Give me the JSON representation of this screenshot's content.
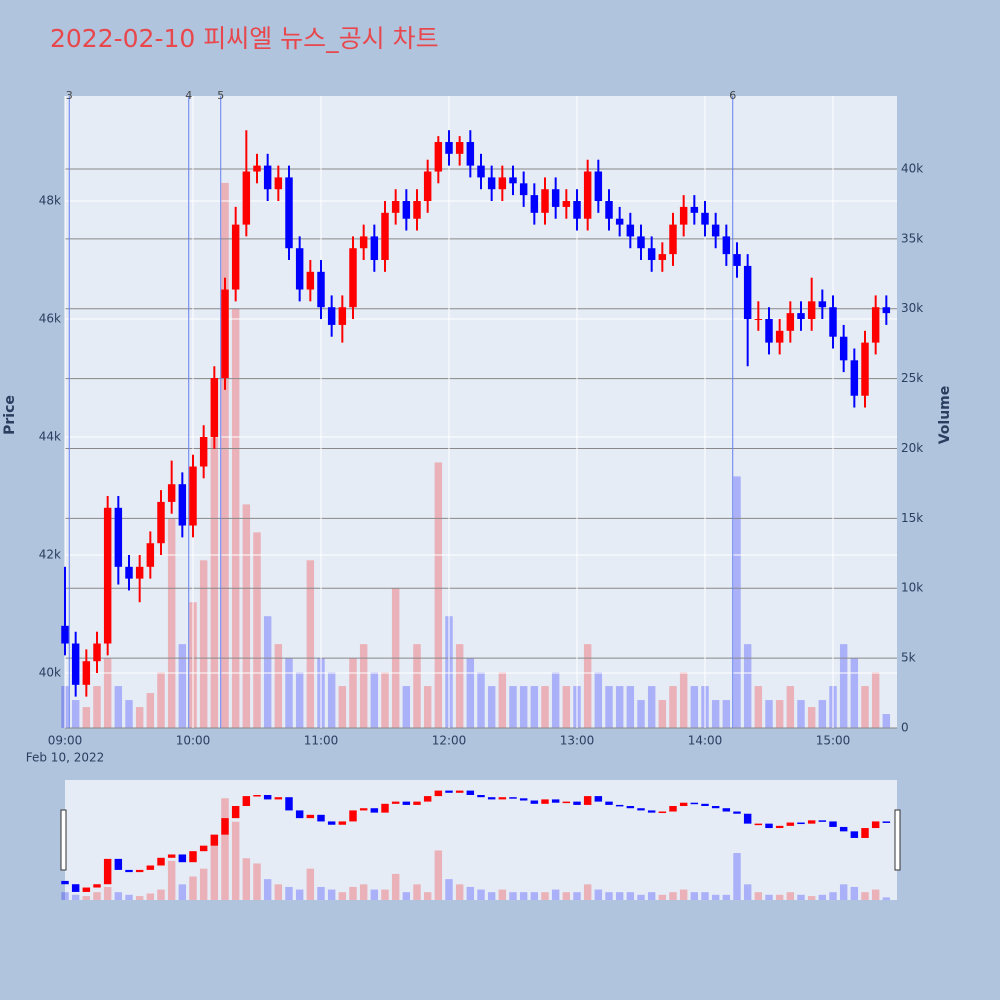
{
  "chart_data": {
    "type": "candlestick",
    "title": "2022-02-10 피씨엘 뉴스_공시 차트",
    "y_title": "Price",
    "y2_title": "Volume",
    "x_date_label": "Feb 10, 2022",
    "x": [
      "09:00",
      "09:05",
      "09:10",
      "09:15",
      "09:20",
      "09:25",
      "09:30",
      "09:35",
      "09:40",
      "09:45",
      "09:50",
      "09:55",
      "10:00",
      "10:05",
      "10:10",
      "10:15",
      "10:20",
      "10:25",
      "10:30",
      "10:35",
      "10:40",
      "10:45",
      "10:50",
      "10:55",
      "11:00",
      "11:05",
      "11:10",
      "11:15",
      "11:20",
      "11:25",
      "11:30",
      "11:35",
      "11:40",
      "11:45",
      "11:50",
      "11:55",
      "12:00",
      "12:05",
      "12:10",
      "12:15",
      "12:20",
      "12:25",
      "12:30",
      "12:35",
      "12:40",
      "12:45",
      "12:50",
      "12:55",
      "13:00",
      "13:05",
      "13:10",
      "13:15",
      "13:20",
      "13:25",
      "13:30",
      "13:35",
      "13:40",
      "13:45",
      "13:50",
      "13:55",
      "14:00",
      "14:05",
      "14:10",
      "14:15",
      "14:20",
      "14:25",
      "14:30",
      "14:35",
      "14:40",
      "14:45",
      "14:50",
      "14:55",
      "15:00",
      "15:05",
      "15:10",
      "15:15",
      "15:20",
      "15:25"
    ],
    "open": [
      40800,
      40500,
      39800,
      40200,
      40500,
      42800,
      41800,
      41600,
      41800,
      42200,
      42900,
      43200,
      42500,
      43500,
      44000,
      45000,
      46500,
      47600,
      48500,
      48600,
      48200,
      48400,
      47200,
      46500,
      46800,
      46200,
      45900,
      46200,
      47200,
      47400,
      47000,
      47800,
      48000,
      47700,
      48000,
      48500,
      49000,
      48800,
      49000,
      48600,
      48400,
      48200,
      48400,
      48300,
      48100,
      47800,
      48200,
      47900,
      48000,
      47700,
      48500,
      48000,
      47700,
      47600,
      47400,
      47200,
      47000,
      47100,
      47600,
      47900,
      47800,
      47600,
      47400,
      47100,
      46900,
      46000,
      46000,
      45600,
      45800,
      46100,
      46000,
      46300,
      46200,
      45700,
      45300,
      44700,
      45600,
      46200
    ],
    "high": [
      41800,
      40700,
      40400,
      40700,
      43000,
      43000,
      42000,
      42000,
      42400,
      43100,
      43600,
      43400,
      43700,
      44200,
      45200,
      46700,
      47900,
      49200,
      48800,
      48800,
      48600,
      48600,
      47400,
      47000,
      47000,
      46400,
      46400,
      47400,
      47600,
      47600,
      48000,
      48200,
      48200,
      48200,
      48700,
      49100,
      49200,
      49100,
      49200,
      48800,
      48600,
      48600,
      48600,
      48500,
      48300,
      48400,
      48400,
      48200,
      48200,
      48700,
      48700,
      48200,
      47900,
      47800,
      47600,
      47400,
      47300,
      47800,
      48100,
      48100,
      48000,
      47800,
      47600,
      47300,
      47100,
      46300,
      46200,
      46000,
      46300,
      46300,
      46700,
      46500,
      46400,
      45900,
      45500,
      45800,
      46400,
      46400
    ],
    "low": [
      40300,
      39600,
      39600,
      40000,
      40300,
      41500,
      41400,
      41200,
      41600,
      42000,
      42700,
      42300,
      42300,
      43300,
      43800,
      44800,
      46300,
      47400,
      48300,
      48000,
      48000,
      47000,
      46300,
      46300,
      46000,
      45700,
      45600,
      46000,
      47000,
      46800,
      46800,
      47600,
      47500,
      47500,
      47800,
      48300,
      48600,
      48600,
      48400,
      48200,
      48000,
      48000,
      48100,
      47900,
      47600,
      47600,
      47700,
      47700,
      47500,
      47500,
      47800,
      47500,
      47400,
      47200,
      47000,
      46800,
      46800,
      46900,
      47400,
      47600,
      47400,
      47200,
      46900,
      46700,
      45200,
      45800,
      45400,
      45400,
      45600,
      45800,
      45800,
      46000,
      45500,
      45100,
      44500,
      44500,
      45400,
      45900
    ],
    "close": [
      40500,
      39800,
      40200,
      40500,
      42800,
      41800,
      41600,
      41800,
      42200,
      42900,
      43200,
      42500,
      43500,
      44000,
      45000,
      46500,
      47600,
      48500,
      48600,
      48200,
      48400,
      47200,
      46500,
      46800,
      46200,
      45900,
      46200,
      47200,
      47400,
      47000,
      47800,
      48000,
      47700,
      48000,
      48500,
      49000,
      48800,
      49000,
      48600,
      48400,
      48200,
      48400,
      48300,
      48100,
      47800,
      48200,
      47900,
      48000,
      47700,
      48500,
      48000,
      47700,
      47600,
      47400,
      47200,
      47000,
      47100,
      47600,
      47900,
      47800,
      47600,
      47400,
      47100,
      46900,
      46000,
      46000,
      45600,
      45800,
      46100,
      46000,
      46300,
      46200,
      45700,
      45300,
      44700,
      45600,
      46200,
      46100
    ],
    "volume": [
      3000,
      2000,
      1500,
      3000,
      5000,
      3000,
      2000,
      1500,
      2500,
      4000,
      15000,
      6000,
      9000,
      12000,
      25000,
      39000,
      30000,
      16000,
      14000,
      8000,
      6000,
      5000,
      4000,
      12000,
      5000,
      4000,
      3000,
      5000,
      6000,
      4000,
      4000,
      10000,
      3000,
      6000,
      3000,
      19000,
      8000,
      6000,
      5000,
      4000,
      3000,
      4000,
      3000,
      3000,
      3000,
      3000,
      4000,
      3000,
      3000,
      6000,
      4000,
      3000,
      3000,
      3000,
      2000,
      3000,
      2000,
      3000,
      4000,
      3000,
      3000,
      2000,
      2000,
      18000,
      6000,
      3000,
      2000,
      2000,
      3000,
      2000,
      1500,
      2000,
      3000,
      6000,
      5000,
      3000,
      4000,
      1000
    ],
    "up_color": "#ff0000",
    "down_color": "#0000ff",
    "news": [
      {
        "time": "09:02",
        "label": "3"
      },
      {
        "time": "09:58",
        "label": "4"
      },
      {
        "time": "10:13",
        "label": "5"
      },
      {
        "time": "14:13",
        "label": "6"
      }
    ],
    "xlim": [
      "09:00",
      "15:30"
    ],
    "xticks": [
      "09:00",
      "10:00",
      "11:00",
      "12:00",
      "13:00",
      "14:00",
      "15:00"
    ],
    "ylim": [
      39068,
      49780
    ],
    "yticks": [
      {
        "value": 40000,
        "label": "40k"
      },
      {
        "value": 42000,
        "label": "42k"
      },
      {
        "value": 44000,
        "label": "44k"
      },
      {
        "value": 46000,
        "label": "46k"
      },
      {
        "value": 48000,
        "label": "48k"
      }
    ],
    "y2lim": [
      0,
      45220
    ],
    "y2ticks": [
      0,
      {
        "value": 5000,
        "label": "5k"
      },
      {
        "value": 10000,
        "label": "10k"
      },
      {
        "value": 15000,
        "label": "15k"
      },
      {
        "value": 20000,
        "label": "20k"
      },
      {
        "value": 25000,
        "label": "25k"
      },
      {
        "value": 30000,
        "label": "30k"
      },
      {
        "value": 35000,
        "label": "35k"
      },
      {
        "value": 40000,
        "label": "40k"
      }
    ],
    "grid": true,
    "range_slider": true
  }
}
